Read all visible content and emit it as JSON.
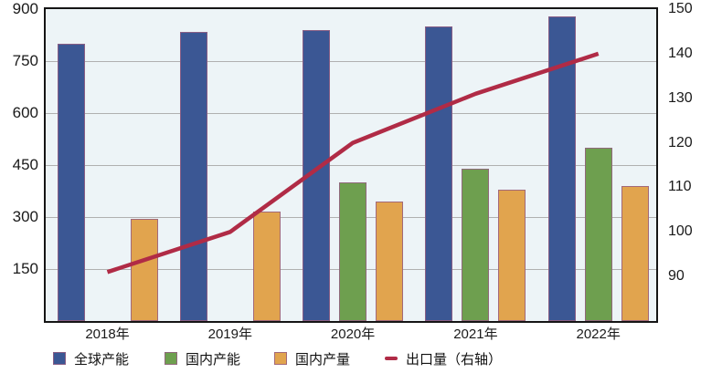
{
  "chart_data": {
    "type": "bar",
    "subtype": "grouped-bars-with-line-overlay",
    "title": "",
    "categories": [
      "2018年",
      "2019年",
      "2020年",
      "2021年",
      "2022年"
    ],
    "series": [
      {
        "key": "global-capacity",
        "name": "全球产能",
        "type": "bar",
        "axis": "left",
        "color": "#3b5794",
        "values": [
          800,
          835,
          840,
          850,
          880
        ]
      },
      {
        "key": "domestic-capacity",
        "name": "国内产能",
        "type": "bar",
        "axis": "left",
        "color": "#6e9f4f",
        "values": [
          null,
          null,
          400,
          440,
          500
        ]
      },
      {
        "key": "domestic-output",
        "name": "国内产量",
        "type": "bar",
        "axis": "left",
        "color": "#e1a44e",
        "values": [
          295,
          315,
          345,
          380,
          390
        ]
      },
      {
        "key": "export-volume",
        "name": "出口量（右轴）",
        "type": "line",
        "axis": "right",
        "color": "#b02b46",
        "values": [
          91,
          100,
          120,
          131,
          140
        ]
      }
    ],
    "left_axis": {
      "min": 0,
      "max": 900,
      "ticks": [
        150,
        300,
        450,
        600,
        750,
        900
      ]
    },
    "right_axis": {
      "min": 80,
      "max": 150,
      "ticks": [
        90,
        100,
        110,
        120,
        130,
        140,
        150
      ]
    },
    "grid": true,
    "legend_position": "bottom"
  },
  "colors": {
    "plot_background": "#edf4f7",
    "page_background": "#ffffff",
    "gridline": "#b0b0b0",
    "frame": "#151515",
    "bar_border": "#965f82",
    "text": "#1a1a1a"
  }
}
